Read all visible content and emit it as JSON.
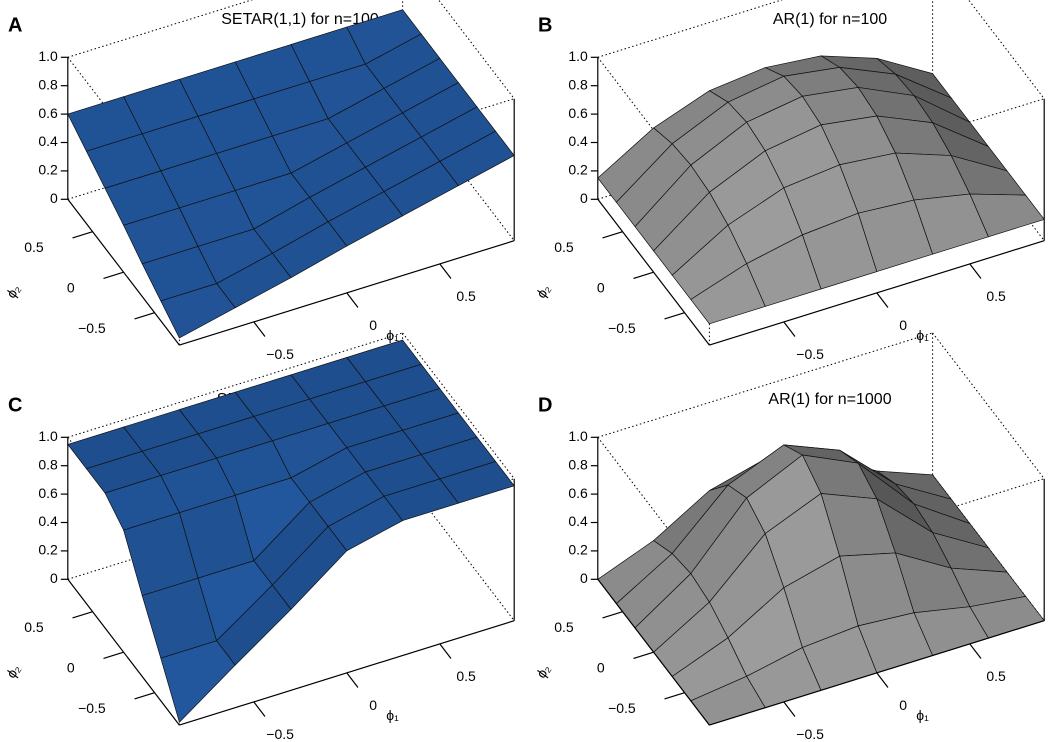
{
  "chart_data": [
    {
      "type": "surface",
      "label": "A",
      "title": "SETAR(1,1) for n=100",
      "xlabel": "ϕ₁",
      "ylabel": "ϕ₂",
      "color": "#1f4f8f",
      "xlim": [
        -0.9,
        0.9
      ],
      "ylim": [
        -0.9,
        0.9
      ],
      "zlim": [
        0,
        1
      ],
      "xticks": [
        {
          "value": -0.5,
          "label": "−0.5"
        },
        0,
        0.5
      ],
      "yticks": [
        {
          "value": -0.5,
          "label": "−0.5"
        },
        0,
        0.5
      ],
      "zticks": [
        0,
        0.2,
        0.4,
        0.6,
        0.8,
        {
          "value": 1,
          "label": "1.0"
        }
      ],
      "x": [
        -0.9,
        -0.6,
        -0.3,
        0,
        0.3,
        0.6,
        0.9
      ],
      "y": [
        -0.9,
        -0.6,
        -0.3,
        0,
        0.3,
        0.6,
        0.9
      ],
      "z": [
        [
          0.05,
          0.14,
          0.23,
          0.33,
          0.42,
          0.51,
          0.6
        ],
        [
          0.14,
          0.14,
          0.23,
          0.33,
          0.42,
          0.51,
          0.6
        ],
        [
          0.23,
          0.23,
          0.23,
          0.33,
          0.42,
          0.51,
          0.6
        ],
        [
          0.33,
          0.33,
          0.33,
          0.33,
          0.42,
          0.51,
          0.6
        ],
        [
          0.42,
          0.42,
          0.42,
          0.42,
          0.42,
          0.51,
          0.6
        ],
        [
          0.51,
          0.51,
          0.51,
          0.51,
          0.51,
          0.51,
          0.6
        ],
        [
          0.6,
          0.6,
          0.6,
          0.6,
          0.6,
          0.6,
          0.6
        ]
      ]
    },
    {
      "type": "surface",
      "label": "B",
      "title": "AR(1) for n=100",
      "xlabel": "ϕ₁",
      "ylabel": "ϕ₂",
      "color": "#8e8e8e",
      "xlim": [
        -0.9,
        0.9
      ],
      "ylim": [
        -0.9,
        0.9
      ],
      "zlim": [
        0,
        1
      ],
      "xticks": [
        {
          "value": -0.5,
          "label": "−0.5"
        },
        0,
        0.5
      ],
      "yticks": [
        {
          "value": -0.5,
          "label": "−0.5"
        },
        0,
        0.5
      ],
      "zticks": [
        0,
        0.2,
        0.4,
        0.6,
        0.8,
        {
          "value": 1,
          "label": "1.0"
        }
      ],
      "x": [
        -0.9,
        -0.6,
        -0.3,
        0,
        0.3,
        0.6,
        0.9
      ],
      "y": [
        -0.9,
        -0.6,
        -0.3,
        0,
        0.3,
        0.6,
        0.9
      ],
      "z": [
        [
          0.15,
          0.15,
          0.15,
          0.15,
          0.15,
          0.15,
          0.15
        ],
        [
          0.15,
          0.28,
          0.36,
          0.39,
          0.36,
          0.28,
          0.15
        ],
        [
          0.15,
          0.38,
          0.52,
          0.56,
          0.52,
          0.38,
          0.15
        ],
        [
          0.15,
          0.44,
          0.61,
          0.67,
          0.61,
          0.44,
          0.15
        ],
        [
          0.15,
          0.46,
          0.64,
          0.7,
          0.64,
          0.46,
          0.15
        ],
        [
          0.15,
          0.44,
          0.61,
          0.67,
          0.61,
          0.44,
          0.15
        ],
        [
          0.15,
          0.38,
          0.52,
          0.56,
          0.52,
          0.38,
          0.15
        ]
      ]
    },
    {
      "type": "surface",
      "label": "C",
      "title": "SETAR(1,1) for n=1000",
      "xlabel": "ϕ₁",
      "ylabel": "ϕ₂",
      "color": "#1f4f8f",
      "xlim": [
        -0.9,
        0.9
      ],
      "ylim": [
        -0.9,
        0.9
      ],
      "zlim": [
        0,
        1
      ],
      "xticks": [
        {
          "value": -0.5,
          "label": "−0.5"
        },
        0,
        0.5
      ],
      "yticks": [
        {
          "value": -0.5,
          "label": "−0.5"
        },
        0,
        0.5
      ],
      "zticks": [
        0,
        0.2,
        0.4,
        0.6,
        0.8,
        {
          "value": 1,
          "label": "1.0"
        }
      ],
      "x": [
        -0.9,
        -0.6,
        -0.3,
        0,
        0.3,
        0.6,
        0.9
      ],
      "y": [
        -0.9,
        -0.6,
        -0.3,
        0,
        0.3,
        0.6,
        0.9
      ],
      "z": [
        [
          0.02,
          0.3,
          0.57,
          0.86,
          0.95,
          0.95,
          0.95
        ],
        [
          0.3,
          0.3,
          0.57,
          0.86,
          0.95,
          0.95,
          0.95
        ],
        [
          0.57,
          0.57,
          0.57,
          0.86,
          0.95,
          0.95,
          0.95
        ],
        [
          0.86,
          0.86,
          0.86,
          0.86,
          0.95,
          0.95,
          0.95
        ],
        [
          0.95,
          0.95,
          0.95,
          0.95,
          0.95,
          0.95,
          0.95
        ],
        [
          0.95,
          0.95,
          0.95,
          0.95,
          0.95,
          0.95,
          0.95
        ],
        [
          0.95,
          0.95,
          0.95,
          0.95,
          0.95,
          0.95,
          0.95
        ]
      ]
    },
    {
      "type": "surface",
      "label": "D",
      "title": "AR(1) for n=1000",
      "xlabel": "ϕ₁",
      "ylabel": "ϕ₂",
      "color": "#8e8e8e",
      "xlim": [
        -0.9,
        0.9
      ],
      "ylim": [
        -0.9,
        0.9
      ],
      "zlim": [
        0,
        1
      ],
      "xticks": [
        {
          "value": -0.5,
          "label": "−0.5"
        },
        0,
        0.5
      ],
      "yticks": [
        {
          "value": -0.5,
          "label": "−0.5"
        },
        0,
        0.5
      ],
      "zticks": [
        0,
        0.2,
        0.4,
        0.6,
        0.8,
        {
          "value": 1,
          "label": "1.0"
        }
      ],
      "x": [
        -0.9,
        -0.6,
        -0.3,
        0,
        0.3,
        0.6,
        0.9
      ],
      "y": [
        -0.9,
        -0.6,
        -0.3,
        0,
        0.3,
        0.6,
        0.9
      ],
      "z": [
        [
          0,
          0,
          0,
          0,
          0,
          0,
          0
        ],
        [
          0,
          0.05,
          0.13,
          0.16,
          0.13,
          0.05,
          0
        ],
        [
          0,
          0.15,
          0.38,
          0.48,
          0.38,
          0.15,
          0
        ],
        [
          0,
          0.23,
          0.59,
          0.75,
          0.59,
          0.23,
          0
        ],
        [
          0,
          0.26,
          0.67,
          0.85,
          0.67,
          0.26,
          0
        ],
        [
          0,
          0.23,
          0.59,
          0.75,
          0.59,
          0.23,
          0
        ],
        [
          0,
          0.15,
          0.38,
          0.48,
          0.38,
          0.15,
          0
        ]
      ]
    }
  ]
}
